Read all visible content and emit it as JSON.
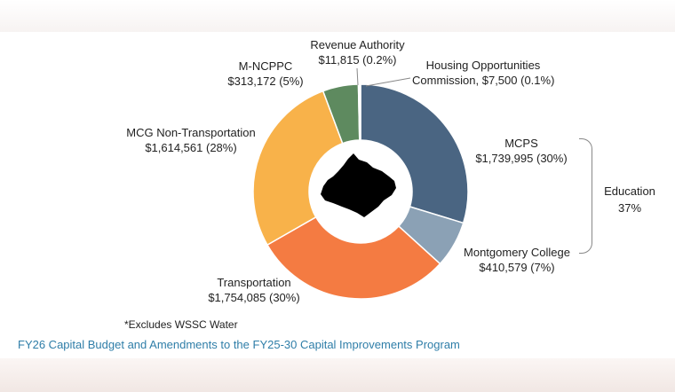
{
  "chart_data": {
    "type": "pie",
    "subtype": "donut",
    "series": [
      {
        "name": "MCPS",
        "value": 1739995,
        "label": "$1,739,995 (30%)",
        "color": "#4a6582"
      },
      {
        "name": "Montgomery College",
        "value": 410579,
        "label": "$410,579 (7%)",
        "color": "#8ba1b5"
      },
      {
        "name": "Transportation",
        "value": 1754085,
        "label": "$1,754,085 (30%)",
        "color": "#f47b42"
      },
      {
        "name": "MCG Non-Transportation",
        "value": 1614561,
        "label": "$1,614,561 (28%)",
        "color": "#f8b24a"
      },
      {
        "name": "M-NCPPC",
        "value": 313172,
        "label": "$313,172 (5%)",
        "color": "#5e8a5f"
      },
      {
        "name": "Revenue Authority",
        "value": 11815,
        "label": "$11,815 (0.2%)",
        "color": "#c7c7a0"
      },
      {
        "name": "Housing Opportunities Commission",
        "value": 7500,
        "label": "Commission, $7,500 (0.1%)",
        "color": "#ede8a6"
      }
    ],
    "group_annotation": {
      "name": "Education",
      "percent": "37%",
      "members": [
        "MCPS",
        "Montgomery College"
      ]
    },
    "center_icon": "montgomery-county-map-silhouette",
    "title": "",
    "legend": "none"
  },
  "labels": {
    "mcps": {
      "name": "MCPS",
      "value": "$1,739,995 (30%)"
    },
    "college": {
      "name": "Montgomery College",
      "value": "$410,579 (7%)"
    },
    "transport": {
      "name": "Transportation",
      "value": "$1,754,085 (30%)"
    },
    "mcg": {
      "name": "MCG Non-Transportation",
      "value": "$1,614,561 (28%)"
    },
    "mncppc": {
      "name": "M-NCPPC",
      "value": "$313,172 (5%)"
    },
    "revenue": {
      "name": "Revenue Authority",
      "value": "$11,815 (0.2%)"
    },
    "hoc": {
      "name": "Housing Opportunities",
      "value": "Commission, $7,500 (0.1%)"
    }
  },
  "education": {
    "label": "Education",
    "percent": "37%"
  },
  "footnote": "*Excludes WSSC Water",
  "caption": "FY26 Capital Budget and Amendments to the FY25-30 Capital Improvements Program"
}
